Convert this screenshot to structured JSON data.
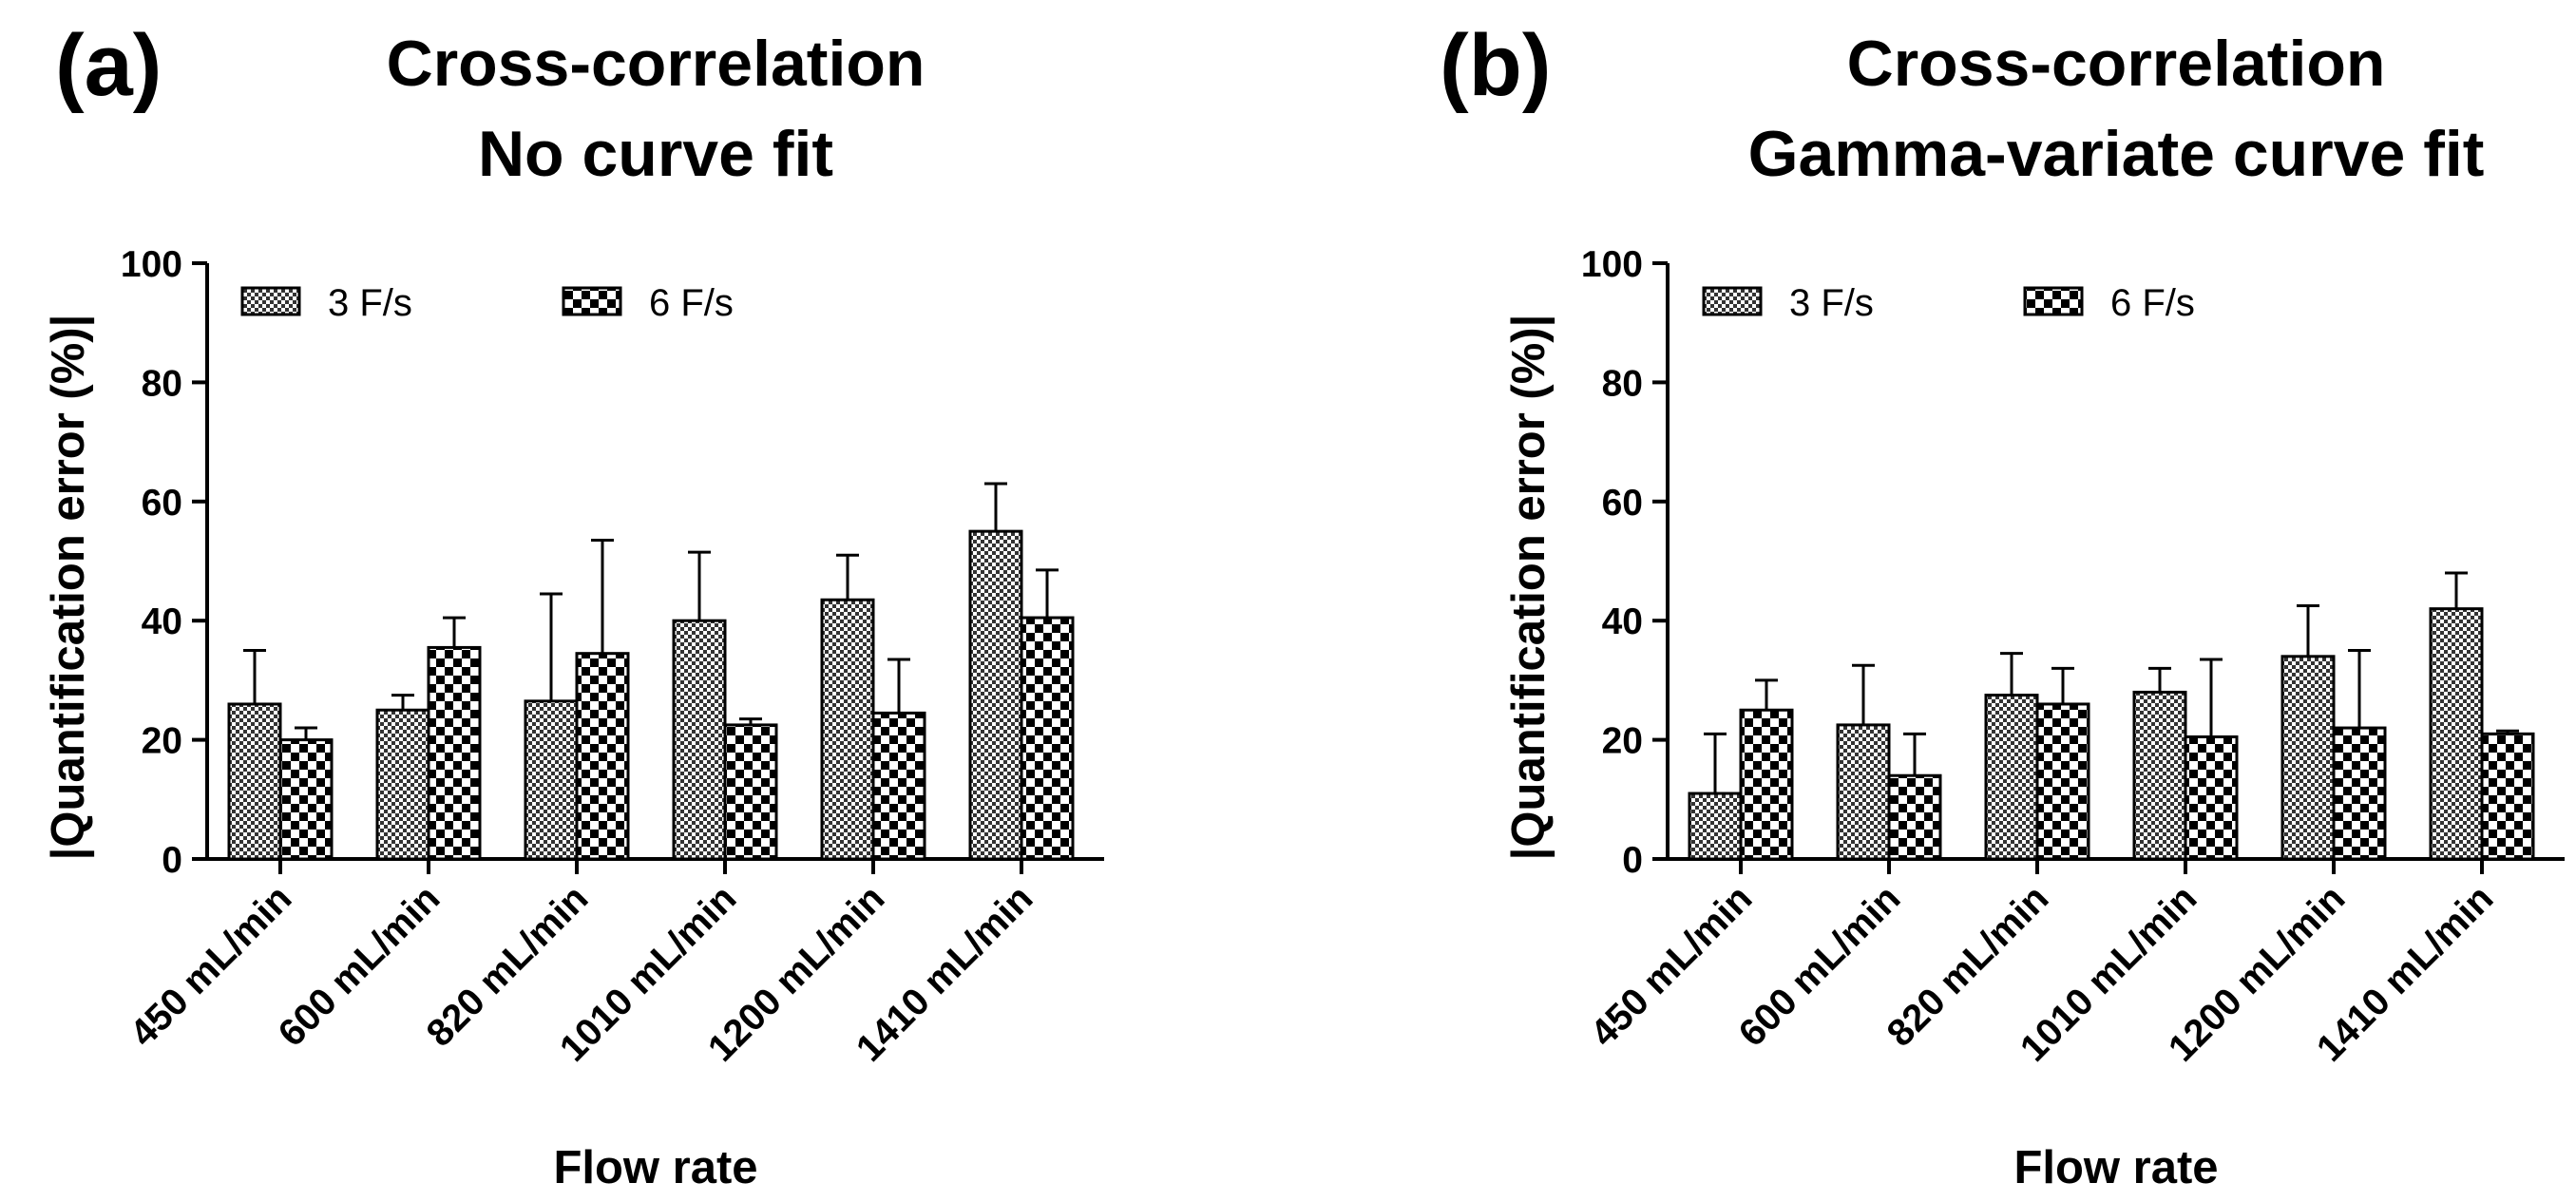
{
  "chart_data": [
    {
      "type": "bar",
      "panel_label": "(a)",
      "title": [
        "Cross-correlation",
        "No curve fit"
      ],
      "xlabel": "Flow rate",
      "ylabel": "|Quantification error (%)|",
      "ylim": [
        0,
        100
      ],
      "yticks": [
        "0",
        "20",
        "40",
        "60",
        "80",
        "100"
      ],
      "categories": [
        "450 mL/min",
        "600 mL/min",
        "820 mL/min",
        "1010 mL/min",
        "1200 mL/min",
        "1410 mL/min"
      ],
      "legend_position": "top-left",
      "series": [
        {
          "name": "3 F/s",
          "pattern": "fine-checker",
          "values": [
            26,
            25,
            26.5,
            40,
            43.5,
            55
          ],
          "error": [
            9,
            2.5,
            18,
            11.5,
            7.5,
            8
          ]
        },
        {
          "name": "6 F/s",
          "pattern": "coarse-checker",
          "values": [
            20,
            35.5,
            34.5,
            22.5,
            24.5,
            40.5
          ],
          "error": [
            2,
            5,
            19,
            1,
            9,
            8
          ]
        }
      ]
    },
    {
      "type": "bar",
      "panel_label": "(b)",
      "title": [
        "Cross-correlation",
        "Gamma-variate curve fit"
      ],
      "xlabel": "Flow rate",
      "ylabel": "|Quantification error (%)|",
      "ylim": [
        0,
        100
      ],
      "yticks": [
        "0",
        "20",
        "40",
        "60",
        "80",
        "100"
      ],
      "categories": [
        "450 mL/min",
        "600 mL/min",
        "820 mL/min",
        "1010 mL/min",
        "1200 mL/min",
        "1410 mL/min"
      ],
      "legend_position": "top-left",
      "series": [
        {
          "name": "3 F/s",
          "pattern": "fine-checker",
          "values": [
            11,
            22.5,
            27.5,
            28,
            34,
            42
          ],
          "error": [
            10,
            10,
            7,
            4,
            8.5,
            6
          ]
        },
        {
          "name": "6 F/s",
          "pattern": "coarse-checker",
          "values": [
            25,
            14,
            26,
            20.5,
            22,
            21
          ],
          "error": [
            5,
            7,
            6,
            13,
            13,
            0.5
          ]
        }
      ]
    }
  ]
}
